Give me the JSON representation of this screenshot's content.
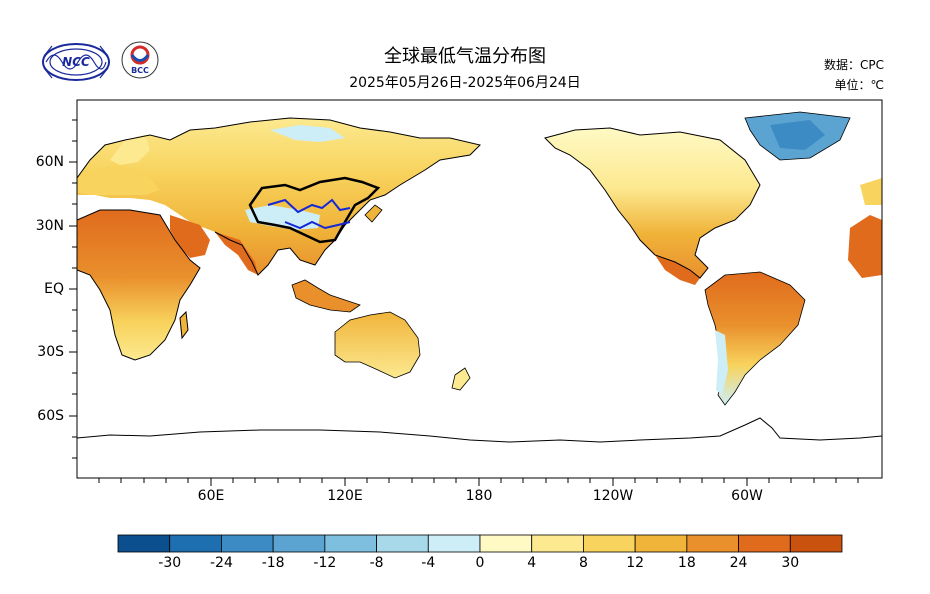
{
  "header": {
    "title": "全球最低气温分布图",
    "subtitle": "2025年05月26日-2025年06月24日",
    "source": "数据：CPC",
    "unit": "单位：℃"
  },
  "logos": {
    "left": "NCC",
    "right": "BCC"
  },
  "map": {
    "lat_ticks": [
      "60N",
      "30N",
      "EQ",
      "30S",
      "60S"
    ],
    "lon_ticks": [
      "60E",
      "120E",
      "180",
      "120W",
      "60W"
    ],
    "projection": "cylindrical equidistant, centered 180"
  },
  "colorbar": {
    "levels": [
      "-30",
      "-24",
      "-18",
      "-12",
      "-8",
      "-4",
      "0",
      "4",
      "8",
      "12",
      "18",
      "24",
      "30"
    ],
    "colors": [
      "#0b4f8f",
      "#1d6fb0",
      "#3c8bc4",
      "#5ba4d2",
      "#7ebfe0",
      "#a8d9ea",
      "#cdeef6",
      "#fff9c4",
      "#fce990",
      "#f8d35d",
      "#f0b43a",
      "#e9902d",
      "#e06b1d",
      "#c9520f"
    ]
  }
}
